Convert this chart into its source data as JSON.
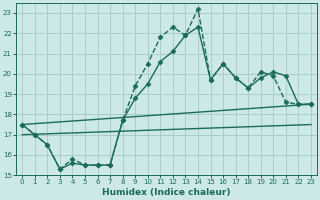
{
  "xlabel": "Humidex (Indice chaleur)",
  "background_color": "#cce8e8",
  "grid_color": "#aacccc",
  "line_color": "#1a6b5a",
  "xlim": [
    -0.5,
    23.5
  ],
  "ylim": [
    15,
    23.5
  ],
  "yticks": [
    15,
    16,
    17,
    18,
    19,
    20,
    21,
    22,
    23
  ],
  "xticks": [
    0,
    1,
    2,
    3,
    4,
    5,
    6,
    7,
    8,
    9,
    10,
    11,
    12,
    13,
    14,
    15,
    16,
    17,
    18,
    19,
    20,
    21,
    22,
    23
  ],
  "series": [
    {
      "x": [
        0,
        1,
        2,
        3,
        4,
        5,
        6,
        7,
        8,
        9,
        10,
        11,
        12,
        13,
        14,
        15,
        16,
        17,
        18,
        19,
        20,
        21,
        22,
        23
      ],
      "y": [
        17.5,
        17.0,
        16.5,
        15.3,
        15.8,
        15.5,
        15.5,
        15.5,
        17.7,
        19.4,
        20.5,
        21.8,
        22.3,
        21.9,
        23.2,
        19.7,
        20.5,
        19.8,
        19.3,
        20.1,
        19.9,
        18.6,
        18.5,
        18.5
      ],
      "linestyle": "--",
      "marker": "D",
      "markersize": 2.5,
      "linewidth": 1.0
    },
    {
      "x": [
        0,
        1,
        2,
        3,
        4,
        5,
        6,
        7,
        8,
        9,
        10,
        11,
        12,
        13,
        14,
        15,
        16,
        17,
        18,
        19,
        20,
        21,
        22,
        23
      ],
      "y": [
        17.5,
        17.0,
        16.5,
        15.3,
        15.6,
        15.5,
        15.5,
        15.5,
        17.7,
        18.8,
        19.5,
        20.6,
        21.1,
        21.9,
        22.3,
        19.7,
        20.5,
        19.8,
        19.3,
        19.8,
        20.1,
        19.9,
        18.5,
        18.5
      ],
      "linestyle": "-",
      "marker": "D",
      "markersize": 2.5,
      "linewidth": 1.0
    },
    {
      "x": [
        0,
        23
      ],
      "y": [
        17.5,
        18.5
      ],
      "linestyle": "-",
      "marker": null,
      "markersize": 0,
      "linewidth": 1.0
    },
    {
      "x": [
        0,
        23
      ],
      "y": [
        17.0,
        17.5
      ],
      "linestyle": "-",
      "marker": null,
      "markersize": 0,
      "linewidth": 1.0
    }
  ]
}
